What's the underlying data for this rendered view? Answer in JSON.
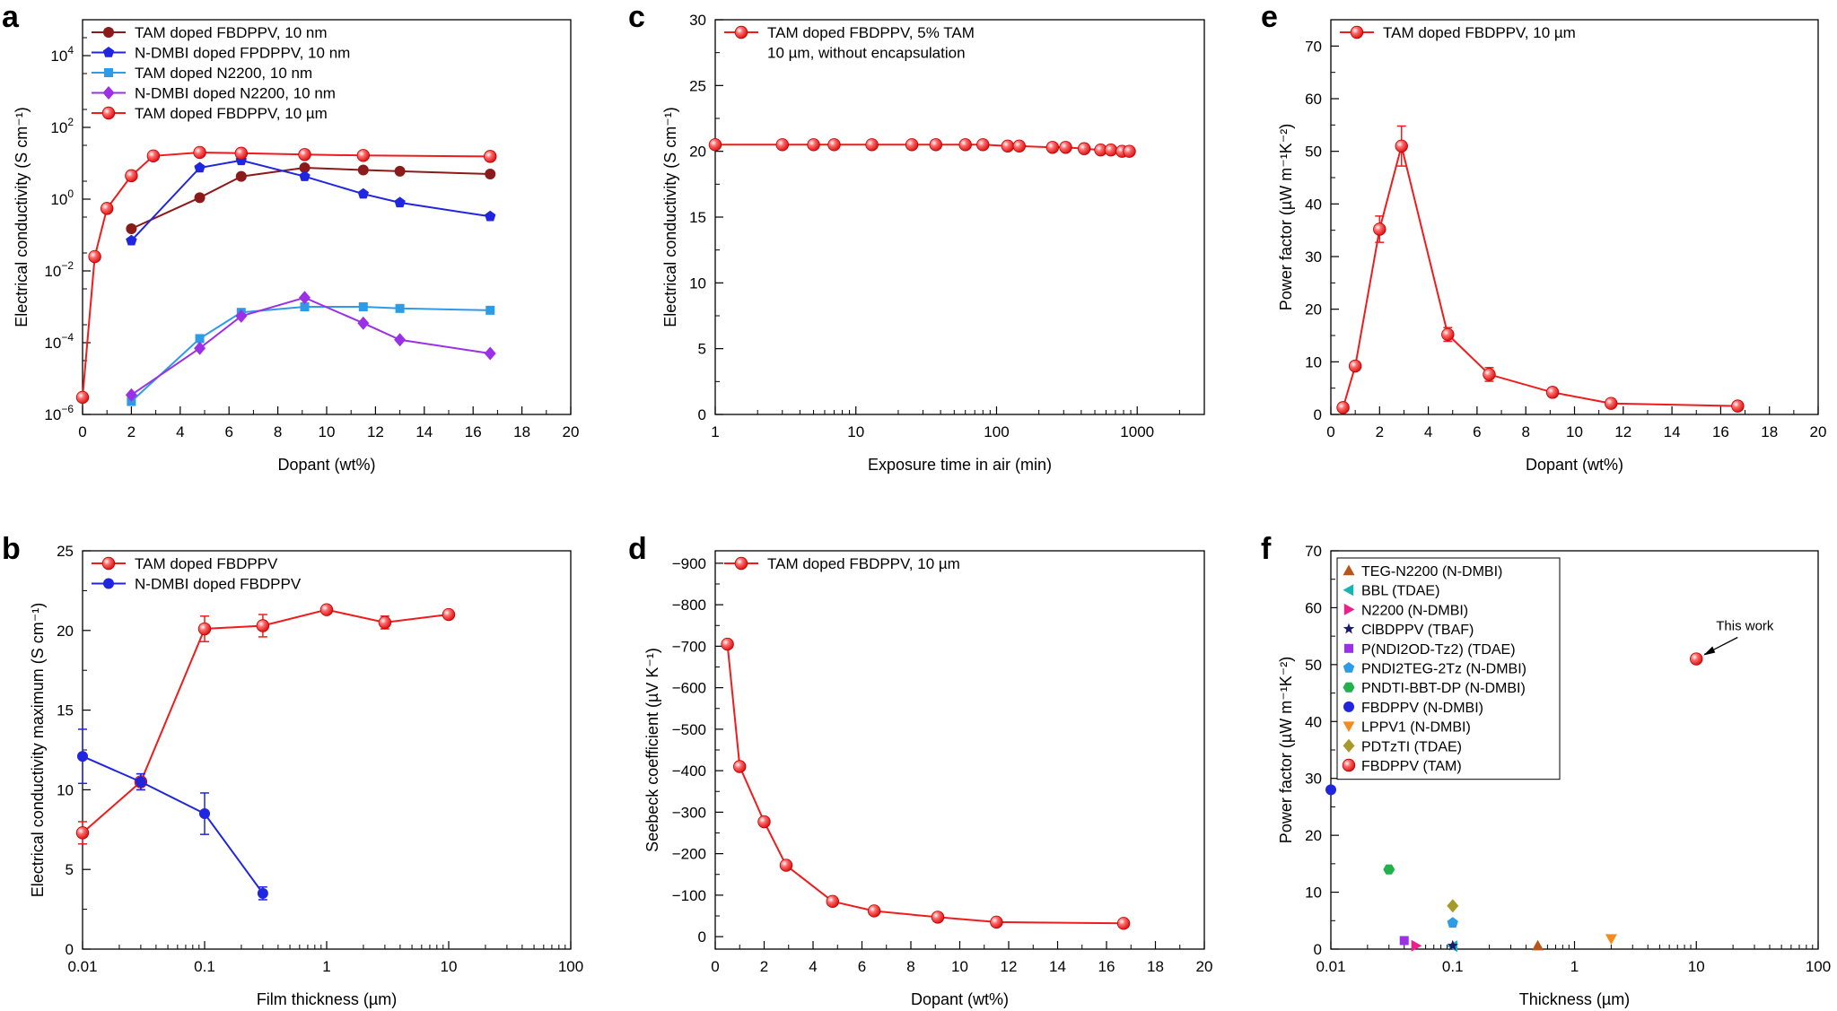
{
  "chart_data": [
    {
      "panel": "a",
      "type": "line",
      "title": "",
      "xlabel": "Dopant (wt%)",
      "ylabel": "Electrical conductivity (S cm⁻¹)",
      "xscale": "linear",
      "yscale": "log",
      "xlim": [
        0,
        20
      ],
      "ylim": [
        1e-06,
        100000
      ],
      "xticks": [
        0,
        2,
        4,
        6,
        8,
        10,
        12,
        14,
        16,
        18,
        20
      ],
      "yticks_exp": [
        -6,
        -4,
        -2,
        0,
        2,
        4
      ],
      "legend_position": "top-left",
      "series": [
        {
          "name": "TAM doped FBDPPV, 10 nm",
          "color": "#8b1a1a",
          "marker": "circle",
          "x": [
            2,
            4.8,
            6.5,
            9.1,
            11.5,
            13,
            16.7
          ],
          "y": [
            0.15,
            1.1,
            4.3,
            7.5,
            6.5,
            6.0,
            5.0
          ]
        },
        {
          "name": "N-DMBI doped FPDPPV, 10 nm",
          "color": "#1f25e0",
          "marker": "pentagon",
          "x": [
            2,
            4.8,
            6.5,
            9.1,
            11.5,
            13,
            16.7
          ],
          "y": [
            0.07,
            7.5,
            12,
            4.3,
            1.4,
            0.8,
            0.33
          ]
        },
        {
          "name": "TAM doped N2200, 10 nm",
          "color": "#2e9be6",
          "marker": "square",
          "x": [
            2,
            4.8,
            6.5,
            9.1,
            11.5,
            13,
            16.7
          ],
          "y": [
            2.3e-06,
            0.00013,
            0.0007,
            0.001,
            0.001,
            0.0009,
            0.0008
          ]
        },
        {
          "name": "N-DMBI doped N2200, 10 nm",
          "color": "#9b30e6",
          "marker": "diamond",
          "x": [
            2,
            4.8,
            6.5,
            9.1,
            11.5,
            13,
            16.7
          ],
          "y": [
            3.5e-06,
            7e-05,
            0.00055,
            0.0018,
            0.00035,
            0.00012,
            5e-05
          ]
        },
        {
          "name": "TAM doped FBDPPV, 10 µm",
          "color": "#ee1c1c",
          "marker": "ball",
          "x": [
            0,
            0.5,
            1,
            2,
            2.9,
            4.8,
            6.5,
            9.1,
            11.5,
            16.7
          ],
          "y": [
            3e-06,
            0.025,
            0.55,
            4.5,
            16,
            20,
            19,
            17.5,
            16.5,
            15.5
          ]
        }
      ]
    },
    {
      "panel": "b",
      "type": "line",
      "title": "",
      "xlabel": "Film thickness (µm)",
      "ylabel": "Electrical conductivity maximum (S cm⁻¹)",
      "xscale": "log",
      "yscale": "linear",
      "xlim": [
        0.01,
        100
      ],
      "ylim": [
        0,
        25
      ],
      "xticks": [
        "0.01",
        "0.1",
        "1",
        "10",
        "100"
      ],
      "yticks": [
        0,
        5,
        10,
        15,
        20,
        25
      ],
      "legend_position": "top-left",
      "series": [
        {
          "name": "TAM doped FBDPPV",
          "color": "#ee1c1c",
          "marker": "ball",
          "x": [
            0.01,
            0.03,
            0.1,
            0.3,
            1,
            3,
            10
          ],
          "y": [
            7.3,
            10.5,
            20.1,
            20.3,
            21.3,
            20.5,
            21.0
          ],
          "yerr": [
            0.7,
            0.5,
            0.8,
            0.7,
            0.2,
            0.4,
            0.2
          ]
        },
        {
          "name": "N-DMBI doped FBDPPV",
          "color": "#1f25e0",
          "marker": "circle",
          "x": [
            0.01,
            0.03,
            0.1,
            0.3
          ],
          "y": [
            12.1,
            10.5,
            8.5,
            3.5
          ],
          "yerr": [
            1.7,
            0.5,
            1.3,
            0.4
          ]
        }
      ]
    },
    {
      "panel": "c",
      "type": "line",
      "title": "",
      "xlabel": "Exposure time in air (min)",
      "ylabel": "Electrical conductivity (S cm⁻¹)",
      "xscale": "log",
      "yscale": "linear",
      "xlim": [
        1,
        3000
      ],
      "ylim": [
        0,
        30
      ],
      "xticks": [
        "1",
        "10",
        "100",
        "1000"
      ],
      "yticks": [
        0,
        5,
        10,
        15,
        20,
        25,
        30
      ],
      "legend_position": "top-left",
      "legend_note": "10 µm, without encapsulation",
      "series": [
        {
          "name": "TAM doped FBDPPV, 5% TAM",
          "color": "#ee1c1c",
          "marker": "ball",
          "x": [
            1,
            3,
            5,
            7,
            13,
            25,
            37,
            60,
            80,
            120,
            145,
            250,
            310,
            420,
            550,
            650,
            780,
            880
          ],
          "y": [
            20.5,
            20.5,
            20.5,
            20.5,
            20.5,
            20.5,
            20.5,
            20.5,
            20.5,
            20.4,
            20.4,
            20.3,
            20.3,
            20.2,
            20.1,
            20.1,
            20.0,
            20.0
          ]
        }
      ]
    },
    {
      "panel": "d",
      "type": "line",
      "title": "",
      "xlabel": "Dopant (wt%)",
      "ylabel": "Seebeck coefficient (µV K⁻¹)",
      "xscale": "linear",
      "yscale": "linear",
      "xlim": [
        0,
        20
      ],
      "ylim": [
        30,
        -930
      ],
      "xticks": [
        0,
        2,
        4,
        6,
        8,
        10,
        12,
        14,
        16,
        18,
        20
      ],
      "yticks": [
        0,
        -100,
        -200,
        -300,
        -400,
        -500,
        -600,
        -700,
        -800,
        -900
      ],
      "legend_position": "top-left",
      "series": [
        {
          "name": "TAM doped FBDPPV, 10 µm",
          "color": "#ee1c1c",
          "marker": "ball",
          "x": [
            0.5,
            1,
            2,
            2.9,
            4.8,
            6.5,
            9.1,
            11.5,
            16.7
          ],
          "y": [
            -705,
            -410,
            -277,
            -172,
            -85,
            -62,
            -47,
            -35,
            -32
          ]
        }
      ]
    },
    {
      "panel": "e",
      "type": "line",
      "title": "",
      "xlabel": "Dopant (wt%)",
      "ylabel": "Power factor (µW m⁻¹K⁻²)",
      "xscale": "linear",
      "yscale": "linear",
      "xlim": [
        0,
        20
      ],
      "ylim": [
        0,
        75
      ],
      "xticks": [
        0,
        2,
        4,
        6,
        8,
        10,
        12,
        14,
        16,
        18,
        20
      ],
      "yticks": [
        0,
        10,
        20,
        30,
        40,
        50,
        60,
        70
      ],
      "legend_position": "top-left",
      "series": [
        {
          "name": "TAM doped FBDPPV, 10 µm",
          "color": "#ee1c1c",
          "marker": "ball",
          "x": [
            0.5,
            1,
            2,
            2.9,
            4.8,
            6.5,
            9.1,
            11.5,
            16.7
          ],
          "y": [
            1.3,
            9.2,
            35.2,
            51.0,
            15.2,
            7.6,
            4.2,
            2.1,
            1.6
          ],
          "yerr": [
            0.2,
            0.5,
            2.5,
            3.8,
            1.3,
            1.3,
            0.8,
            0.4,
            0.2
          ]
        }
      ]
    },
    {
      "panel": "f",
      "type": "scatter",
      "title": "",
      "xlabel": "Thickness (µm)",
      "ylabel": "Power factor (µW m⁻¹K⁻²)",
      "xscale": "log",
      "yscale": "linear",
      "xlim": [
        0.01,
        100
      ],
      "ylim": [
        0,
        70
      ],
      "xticks": [
        "0.01",
        "0.1",
        "1",
        "10",
        "100"
      ],
      "yticks": [
        0,
        10,
        20,
        30,
        40,
        50,
        60,
        70
      ],
      "legend_position": "top-left",
      "annotation": "This work",
      "series": [
        {
          "name": "TEG-N2200 (N-DMBI)",
          "color": "#b8561a",
          "marker": "triangle-up",
          "x": [
            0.5
          ],
          "y": [
            0.6
          ]
        },
        {
          "name": "BBL (TDAE)",
          "color": "#19b3b3",
          "marker": "triangle-left",
          "x": [
            0.1
          ],
          "y": [
            0.5
          ]
        },
        {
          "name": "N2200 (N-DMBI)",
          "color": "#ee1f8a",
          "marker": "triangle-right",
          "x": [
            0.05
          ],
          "y": [
            0.6
          ]
        },
        {
          "name": "ClBDPPV (TBAF)",
          "color": "#1a1a6e",
          "marker": "star",
          "x": [
            0.1
          ],
          "y": [
            0.6
          ]
        },
        {
          "name": "P(NDI2OD-Tz2) (TDAE)",
          "color": "#9b30e6",
          "marker": "square",
          "x": [
            0.04
          ],
          "y": [
            1.5
          ]
        },
        {
          "name": "PNDI2TEG-2Tz (N-DMBI)",
          "color": "#2e9be6",
          "marker": "pentagon",
          "x": [
            0.1
          ],
          "y": [
            4.6
          ]
        },
        {
          "name": "PNDTI-BBT-DP (N-DMBI)",
          "color": "#22b14c",
          "marker": "hexagon",
          "x": [
            0.03
          ],
          "y": [
            14
          ]
        },
        {
          "name": "FBDPPV (N-DMBI)",
          "color": "#1f25e0",
          "marker": "circle",
          "x": [
            0.01
          ],
          "y": [
            28
          ]
        },
        {
          "name": "LPPV1 (N-DMBI)",
          "color": "#f28c1f",
          "marker": "triangle-down",
          "x": [
            2
          ],
          "y": [
            1.8
          ]
        },
        {
          "name": "PDTzTI (TDAE)",
          "color": "#a89a2a",
          "marker": "diamond",
          "x": [
            0.1
          ],
          "y": [
            7.6
          ]
        },
        {
          "name": "FBDPPV (TAM)",
          "color": "#ee1c1c",
          "marker": "ball",
          "x": [
            10
          ],
          "y": [
            51
          ]
        }
      ]
    }
  ]
}
